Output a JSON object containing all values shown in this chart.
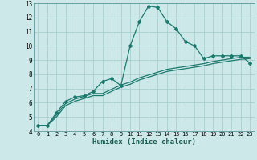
{
  "xlabel": "Humidex (Indice chaleur)",
  "bg_color": "#cde8e8",
  "grid_color": "#aacece",
  "line_color": "#1a7a6e",
  "xlim": [
    -0.5,
    23.5
  ],
  "ylim": [
    4,
    13
  ],
  "xticks": [
    0,
    1,
    2,
    3,
    4,
    5,
    6,
    7,
    8,
    9,
    10,
    11,
    12,
    13,
    14,
    15,
    16,
    17,
    18,
    19,
    20,
    21,
    22,
    23
  ],
  "yticks": [
    4,
    5,
    6,
    7,
    8,
    9,
    10,
    11,
    12,
    13
  ],
  "series1_x": [
    0,
    1,
    2,
    3,
    4,
    5,
    6,
    7,
    8,
    9,
    10,
    11,
    12,
    13,
    14,
    15,
    16,
    17,
    18,
    19,
    20,
    21,
    22,
    23
  ],
  "series1_y": [
    4.4,
    4.4,
    5.3,
    6.1,
    6.4,
    6.5,
    6.8,
    7.5,
    7.7,
    7.2,
    10.0,
    11.7,
    12.8,
    12.7,
    11.7,
    11.2,
    10.3,
    10.0,
    9.1,
    9.3,
    9.3,
    9.3,
    9.3,
    8.8
  ],
  "series2_x": [
    0,
    1,
    2,
    3,
    4,
    5,
    6,
    7,
    8,
    9,
    10,
    11,
    12,
    13,
    14,
    15,
    16,
    17,
    18,
    19,
    20,
    21,
    22,
    23
  ],
  "series2_y": [
    4.4,
    4.4,
    5.0,
    5.8,
    6.1,
    6.3,
    6.5,
    6.5,
    6.8,
    7.1,
    7.3,
    7.6,
    7.8,
    8.0,
    8.2,
    8.3,
    8.4,
    8.5,
    8.6,
    8.75,
    8.85,
    8.95,
    9.05,
    9.1
  ],
  "series3_x": [
    0,
    1,
    2,
    3,
    4,
    5,
    6,
    7,
    8,
    9,
    10,
    11,
    12,
    13,
    14,
    15,
    16,
    17,
    18,
    19,
    20,
    21,
    22,
    23
  ],
  "series3_y": [
    4.4,
    4.4,
    5.15,
    5.95,
    6.25,
    6.45,
    6.65,
    6.65,
    6.95,
    7.25,
    7.45,
    7.75,
    7.95,
    8.15,
    8.35,
    8.45,
    8.55,
    8.65,
    8.75,
    8.9,
    9.0,
    9.1,
    9.2,
    9.2
  ]
}
